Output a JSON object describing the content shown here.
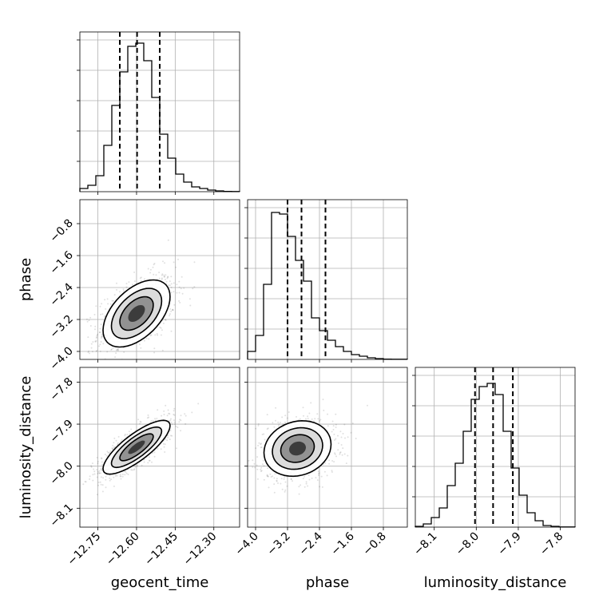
{
  "chart_data": {
    "type": "corner",
    "parameters": [
      "geocent_time",
      "phase",
      "luminosity_distance"
    ],
    "ranges": {
      "geocent_time": [
        -12.82,
        -12.2
      ],
      "phase": [
        -4.2,
        -0.2
      ],
      "luminosity_distance": [
        -8.145,
        -7.765
      ]
    },
    "ticks": {
      "geocent_time": [
        -12.75,
        -12.6,
        -12.45,
        -12.3
      ],
      "phase": [
        -4.0,
        -3.2,
        -2.4,
        -1.6,
        -0.8
      ],
      "luminosity_distance": [
        -8.1,
        -8.0,
        -7.9,
        -7.8
      ]
    },
    "tick_labels": {
      "geocent_time": [
        "−12.75",
        "−12.60",
        "−12.45",
        "−12.30"
      ],
      "phase": [
        "−4.0",
        "−3.2",
        "−2.4",
        "−1.6",
        "−0.8"
      ],
      "luminosity_distance": [
        "−8.1",
        "−8.0",
        "−7.9",
        "−7.8"
      ]
    },
    "quantiles": {
      "geocent_time": [
        -12.665,
        -12.598,
        -12.51
      ],
      "phase": [
        -3.2,
        -2.85,
        -2.25
      ],
      "luminosity_distance": [
        -8.003,
        -7.96,
        -7.913
      ]
    },
    "histograms": {
      "geocent_time": [
        0.02,
        0.04,
        0.1,
        0.29,
        0.54,
        0.75,
        0.91,
        0.93,
        0.82,
        0.59,
        0.36,
        0.21,
        0.11,
        0.06,
        0.03,
        0.02,
        0.01,
        0.005,
        0.002,
        0.001
      ],
      "phase": [
        0.05,
        0.15,
        0.47,
        0.92,
        0.91,
        0.77,
        0.62,
        0.49,
        0.26,
        0.18,
        0.12,
        0.08,
        0.05,
        0.03,
        0.02,
        0.01,
        0.005,
        0.002,
        0.001,
        0.001
      ],
      "luminosity_distance": [
        0.005,
        0.02,
        0.06,
        0.12,
        0.26,
        0.4,
        0.6,
        0.8,
        0.88,
        0.9,
        0.83,
        0.6,
        0.37,
        0.2,
        0.09,
        0.04,
        0.01,
        0.005,
        0.001,
        0.001
      ]
    },
    "joint": {
      "phase|geocent_time": {
        "mean": [
          -12.6,
          -3.05
        ],
        "sd": [
          0.065,
          0.42
        ],
        "corr": 0.5
      },
      "luminosity_distance|geocent_time": {
        "mean": [
          -12.6,
          -7.955
        ],
        "sd": [
          0.065,
          0.032
        ],
        "corr": 0.8
      },
      "luminosity_distance|phase": {
        "mean": [
          -2.95,
          -7.958
        ],
        "sd": [
          0.42,
          0.033
        ],
        "corr": 0.15
      }
    },
    "contour_levels_sigma": [
      0.5,
      1.0,
      1.5,
      2.0
    ],
    "grid": true,
    "xlabel": [
      "geocent_time",
      "phase",
      "luminosity_distance"
    ],
    "ylabel": [
      "",
      "phase",
      "luminosity_distance"
    ]
  }
}
